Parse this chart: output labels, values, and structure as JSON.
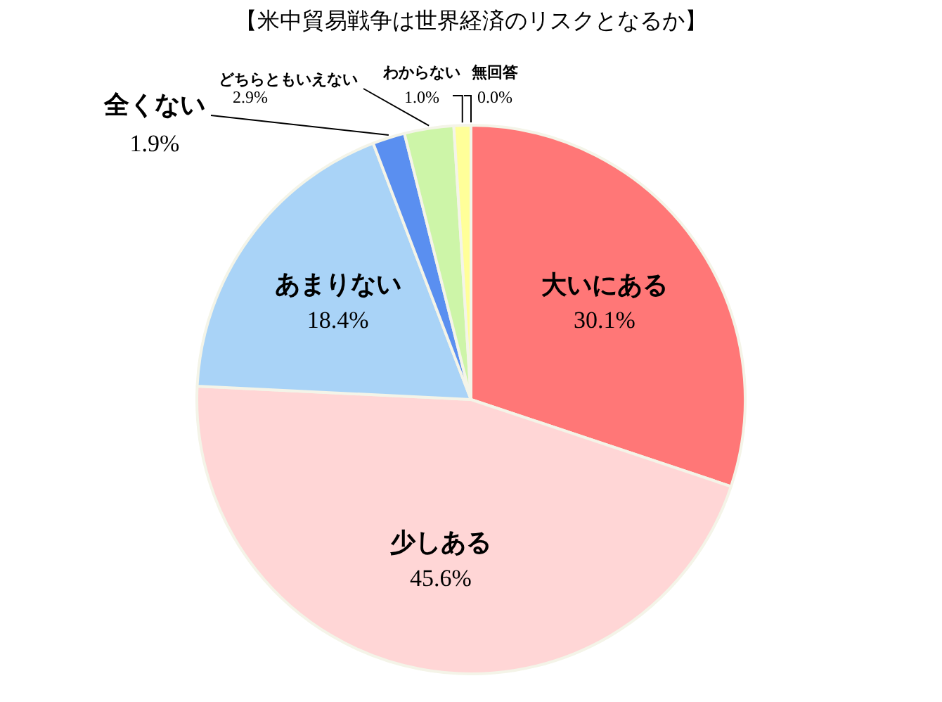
{
  "chart_data": {
    "type": "pie",
    "title": "【米中貿易戦争は世界経済のリスクとなるか】",
    "categories": [
      "大いにある",
      "少しある",
      "あまりない",
      "全くない",
      "どちらともいえない",
      "わからない",
      "無回答"
    ],
    "values": [
      30.1,
      45.6,
      18.4,
      1.9,
      2.9,
      1.0,
      0.0
    ],
    "value_labels": [
      "30.1%",
      "45.6%",
      "18.4%",
      "1.9%",
      "2.9%",
      "1.0%",
      "0.0%"
    ],
    "colors": [
      "#ff7777",
      "#ffd6d6",
      "#a9d3f7",
      "#5a8ff0",
      "#cdf5a8",
      "#ffff99",
      "#f2b0b0"
    ],
    "legend": false
  }
}
